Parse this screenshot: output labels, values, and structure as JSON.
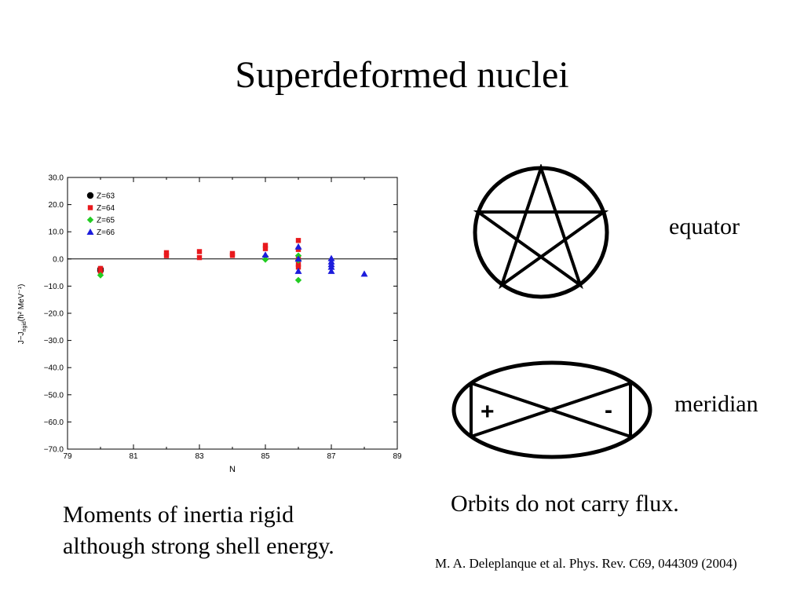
{
  "slide": {
    "title": "Superdeformed nuclei",
    "caption_left_line1": "Moments of inertia rigid",
    "caption_left_line2": "although strong shell energy.",
    "caption_right": "Orbits do not carry flux.",
    "citation": "M. A. Deleplanque et al. Phys. Rev. C69, 044309 (2004)"
  },
  "diagrams": {
    "equator_label": "equator",
    "meridian_label": "meridian",
    "plus_symbol": "+",
    "minus_symbol": "-"
  },
  "chart_data": {
    "type": "scatter",
    "xlabel": "N",
    "ylabel_main": "J−J",
    "ylabel_sub": "rigid",
    "ylabel_unit": "(ħ² MeV⁻¹)",
    "xlim": [
      79,
      89
    ],
    "ylim": [
      -70,
      30
    ],
    "x_ticks": [
      79,
      81,
      83,
      85,
      87,
      89
    ],
    "y_ticks": [
      30,
      20,
      10,
      0,
      -10,
      -20,
      -30,
      -40,
      -50,
      -60,
      -70
    ],
    "y_tick_labels": [
      "30.0",
      "20.0",
      "10.0",
      "0.0",
      "−10.0",
      "−20.0",
      "−30.0",
      "−40.0",
      "−50.0",
      "−60.0",
      "−70.0"
    ],
    "zero_line": true,
    "legend_position": "top-left",
    "series": [
      {
        "name": "Z=63",
        "marker": "circle",
        "color": "#000000",
        "points": [
          [
            80,
            -3.8
          ],
          [
            80,
            -4.3
          ]
        ]
      },
      {
        "name": "Z=64",
        "marker": "square",
        "color": "#e8191d",
        "points": [
          [
            80,
            -3.5
          ],
          [
            80,
            -4.5
          ],
          [
            82,
            2.3
          ],
          [
            82,
            1.2
          ],
          [
            83,
            2.7
          ],
          [
            83,
            0.5
          ],
          [
            84,
            2.0
          ],
          [
            84,
            1.3
          ],
          [
            85,
            5.0
          ],
          [
            85,
            3.8
          ],
          [
            86,
            6.8
          ],
          [
            86,
            3.5
          ],
          [
            86,
            0.5
          ],
          [
            86,
            -2.0
          ],
          [
            86,
            -3.0
          ]
        ]
      },
      {
        "name": "Z=65",
        "marker": "diamond",
        "color": "#22cc22",
        "points": [
          [
            80,
            -6.0
          ],
          [
            85,
            1.0
          ],
          [
            85,
            -0.2
          ],
          [
            86,
            1.2
          ],
          [
            86,
            -0.5
          ],
          [
            86,
            -7.8
          ]
        ]
      },
      {
        "name": "Z=66",
        "marker": "triangle",
        "color": "#1c1cdc",
        "points": [
          [
            85,
            1.5
          ],
          [
            86,
            4.5
          ],
          [
            86,
            0.0
          ],
          [
            86,
            -4.5
          ],
          [
            87,
            0.2
          ],
          [
            87,
            -1.0
          ],
          [
            87,
            -2.0
          ],
          [
            87,
            -3.0
          ],
          [
            87,
            -4.5
          ],
          [
            88,
            -5.5
          ]
        ]
      }
    ]
  }
}
